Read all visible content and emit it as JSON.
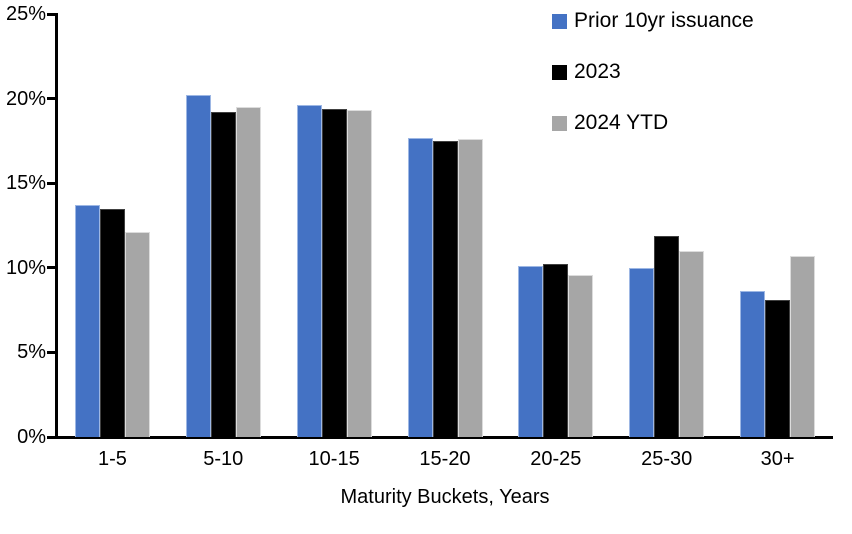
{
  "chart_data": {
    "type": "bar",
    "title": "",
    "xlabel": "Maturity Buckets, Years",
    "ylabel": "",
    "ylim": [
      0,
      25
    ],
    "grid": false,
    "legend_position": "top-right",
    "y_ticks": [
      {
        "value": 0,
        "label": "0%"
      },
      {
        "value": 5,
        "label": "5%"
      },
      {
        "value": 10,
        "label": "10%"
      },
      {
        "value": 15,
        "label": "15%"
      },
      {
        "value": 20,
        "label": "20%"
      },
      {
        "value": 25,
        "label": "25%"
      }
    ],
    "categories": [
      "1-5",
      "5-10",
      "10-15",
      "15-20",
      "20-25",
      "25-30",
      "30+"
    ],
    "series": [
      {
        "name": "Prior 10yr issuance",
        "color": "#4472C4",
        "border_color": "#9DB7E4",
        "values": [
          13.7,
          20.2,
          19.6,
          17.7,
          10.1,
          10.0,
          8.6
        ]
      },
      {
        "name": "2023",
        "color": "#000000",
        "border_color": "#404040",
        "values": [
          13.5,
          19.2,
          19.4,
          17.5,
          10.2,
          11.9,
          8.1
        ]
      },
      {
        "name": "2024 YTD",
        "color": "#A6A6A6",
        "border_color": "#DCDCDC",
        "values": [
          12.1,
          19.5,
          19.3,
          17.6,
          9.6,
          11.0,
          10.7
        ]
      }
    ]
  }
}
